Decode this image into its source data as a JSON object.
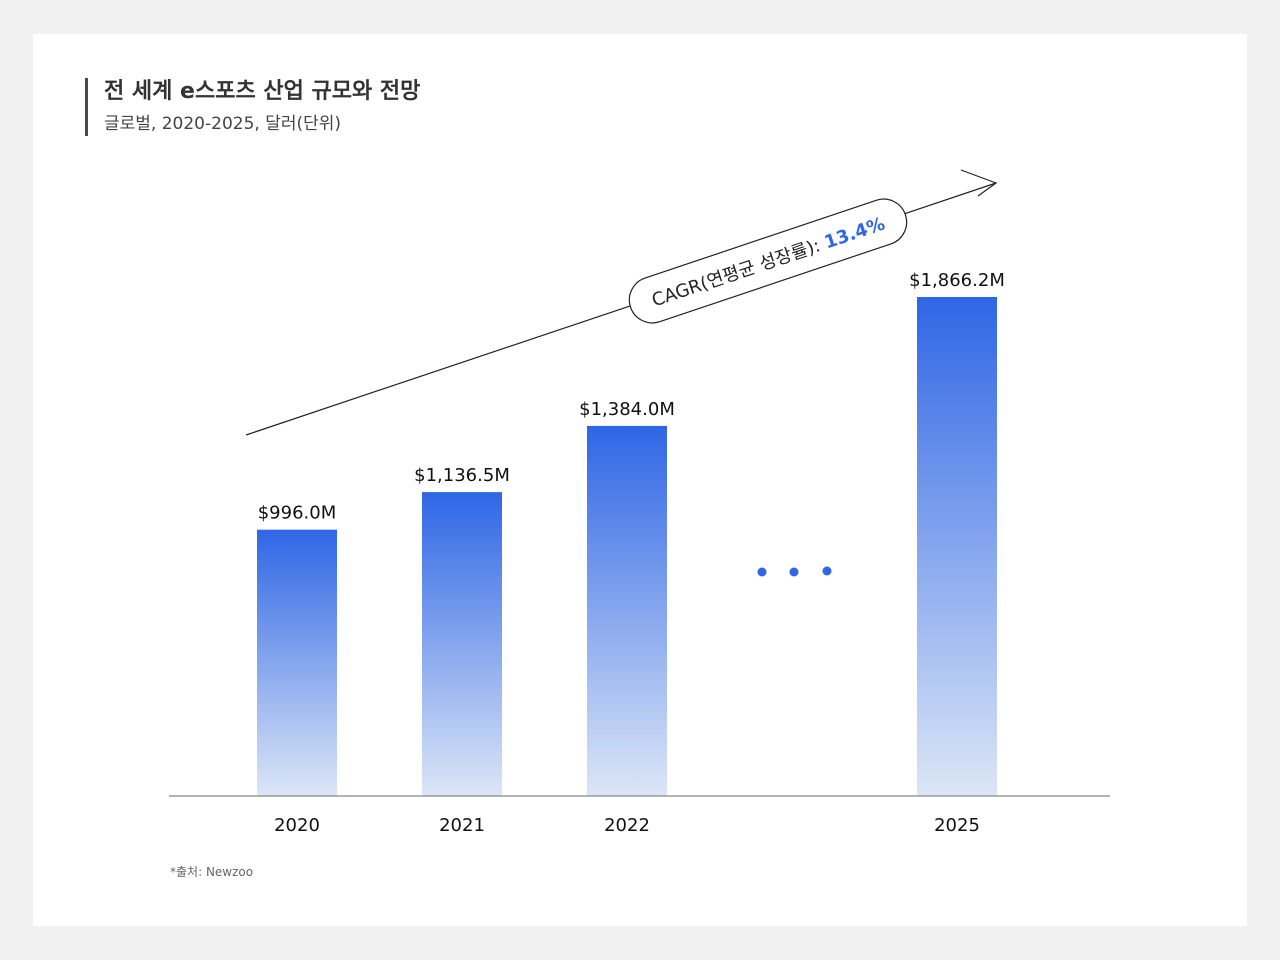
{
  "header": {
    "title": "전 세계 e스포츠 산업 규모와 전망",
    "subtitle": "글로벌, 2020-2025, 달러(단위)"
  },
  "footer": {
    "source": "*출처: Newzoo"
  },
  "colors": {
    "bar_top": "#2f66e6",
    "bar_bottom": "#dce6f6",
    "accent": "#2f66e6",
    "axis": "#888888"
  },
  "chart_data": {
    "type": "bar",
    "categories": [
      "2020",
      "2021",
      "2022",
      "2025"
    ],
    "values": [
      996.0,
      1136.5,
      1384.0,
      1866.2
    ],
    "value_labels": [
      "$996.0M",
      "$1,136.5M",
      "$1,384.0M",
      "$1,866.2M"
    ],
    "ylim": [
      0,
      1866.2
    ],
    "gap_after_index": 2,
    "gap_marker": "• • •",
    "grid": false,
    "annotation": {
      "label": "CAGR(연평균 성장률): ",
      "value": "13.4%"
    }
  }
}
